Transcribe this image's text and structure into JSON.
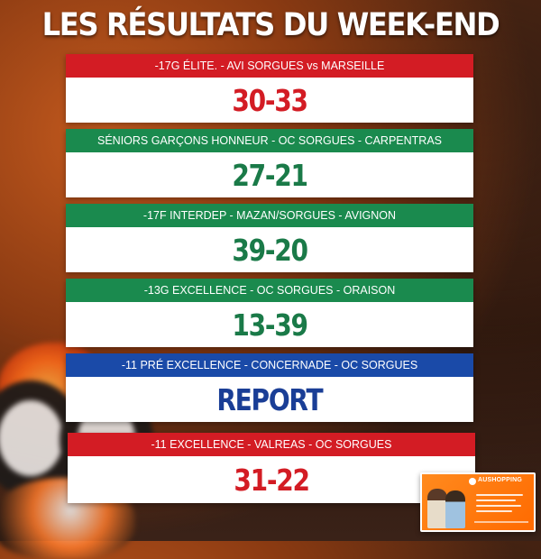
{
  "title": "LES RÉSULTATS DU WEEK-END",
  "colors": {
    "red": "#d31c24",
    "green": "#1a8a4e",
    "blue": "#1a4aa8",
    "white": "#ffffff"
  },
  "matches": [
    {
      "header": "-17G ÉLITE. - AVI SORGUES vs MARSEILLE",
      "result": "30-33",
      "header_color": "#d31c24",
      "result_color": "#d31c24"
    },
    {
      "header": "SÉNIORS GARÇONS HONNEUR - OC SORGUES - CARPENTRAS",
      "result": "27-21",
      "header_color": "#1a8a4e",
      "result_color": "#1a7a48"
    },
    {
      "header": "-17F INTERDEP - MAZAN/SORGUES - AVIGNON",
      "result": "39-20",
      "header_color": "#1a8a4e",
      "result_color": "#1a7a48"
    },
    {
      "header": "-13G EXCELLENCE - OC SORGUES - ORAISON",
      "result": "13-39",
      "header_color": "#1a8a4e",
      "result_color": "#1a7a48"
    },
    {
      "header": "-11 PRÉ EXCELLENCE  - CONCERNADE - OC SORGUES",
      "result": "REPORT",
      "header_color": "#1a4aa8",
      "result_color": "#1a3e96"
    },
    {
      "header": "-11 EXCELLENCE - VALREAS - OC SORGUES",
      "result": "31-22",
      "header_color": "#d31c24",
      "result_color": "#d31c24"
    }
  ],
  "ad": {
    "brand": "AUSHOPPING"
  }
}
